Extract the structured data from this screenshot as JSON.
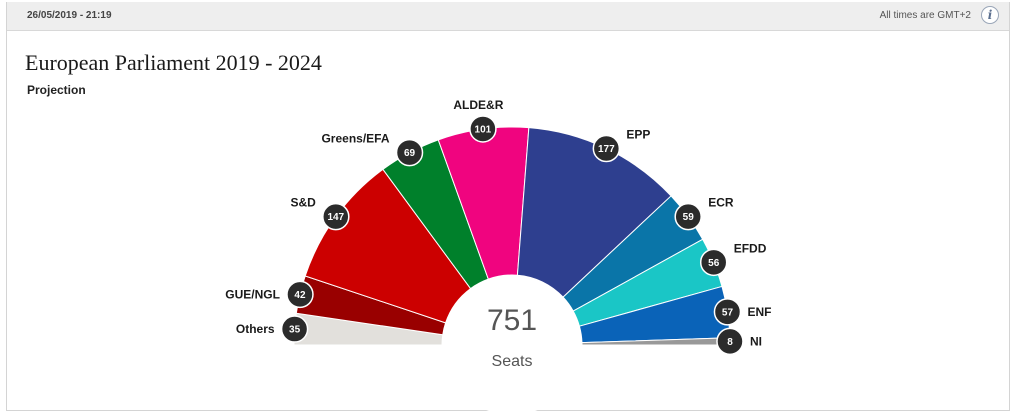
{
  "header": {
    "timestamp": "26/05/2019 - 21:19",
    "timezone_note": "All times are GMT+2",
    "info_icon": "info-icon"
  },
  "chart_data": {
    "type": "pie",
    "title": "European Parliament 2019 - 2024",
    "subtitle": "Projection",
    "total_seats": 751,
    "total_label": "Seats",
    "slices": [
      {
        "name": "Others",
        "value": 35,
        "color": "#e2e0dc"
      },
      {
        "name": "GUE/NGL",
        "value": 42,
        "color": "#990000"
      },
      {
        "name": "S&D",
        "value": 147,
        "color": "#cc0000"
      },
      {
        "name": "Greens/EFA",
        "value": 69,
        "color": "#00802b"
      },
      {
        "name": "ALDE&R",
        "value": 101,
        "color": "#f0047f"
      },
      {
        "name": "EPP",
        "value": 177,
        "color": "#2e3f8f"
      },
      {
        "name": "ECR",
        "value": 59,
        "color": "#0a75a8"
      },
      {
        "name": "EFDD",
        "value": 56,
        "color": "#1ac6c6"
      },
      {
        "name": "ENF",
        "value": 57,
        "color": "#0a63b8"
      },
      {
        "name": "NI",
        "value": 8,
        "color": "#999999"
      }
    ]
  }
}
